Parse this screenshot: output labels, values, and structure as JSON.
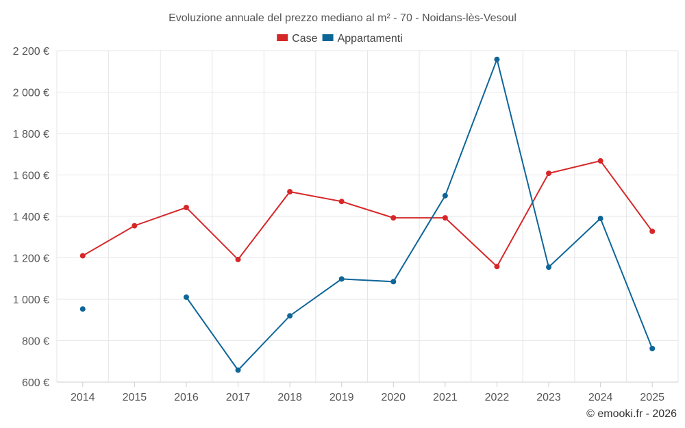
{
  "chart_data": {
    "type": "line",
    "title": "Evoluzione annuale del prezzo mediano al m² - 70 - Noidans-lès-Vesoul",
    "categories": [
      "2014",
      "2015",
      "2016",
      "2017",
      "2018",
      "2019",
      "2020",
      "2021",
      "2022",
      "2023",
      "2024",
      "2025"
    ],
    "ylim": [
      600,
      2200
    ],
    "yticks": [
      600,
      800,
      1000,
      1200,
      1400,
      1600,
      1800,
      2000,
      2200
    ],
    "ytick_labels": [
      "600 €",
      "800 €",
      "1 000 €",
      "1 200 €",
      "1 400 €",
      "1 600 €",
      "1 800 €",
      "2 000 €",
      "2 200 €"
    ],
    "grid": true,
    "legend_position": "top-center",
    "series": [
      {
        "name": "Case",
        "color": "#d62728",
        "values": [
          1210,
          1355,
          1443,
          1192,
          1519,
          1472,
          1393,
          1393,
          1158,
          1608,
          1668,
          1328
        ]
      },
      {
        "name": "Appartamenti",
        "color": "#0e6598",
        "values": [
          953,
          null,
          1010,
          658,
          920,
          1098,
          1085,
          1500,
          2158,
          1155,
          1390,
          762
        ]
      }
    ]
  },
  "credit": "© emooki.fr - 2026"
}
